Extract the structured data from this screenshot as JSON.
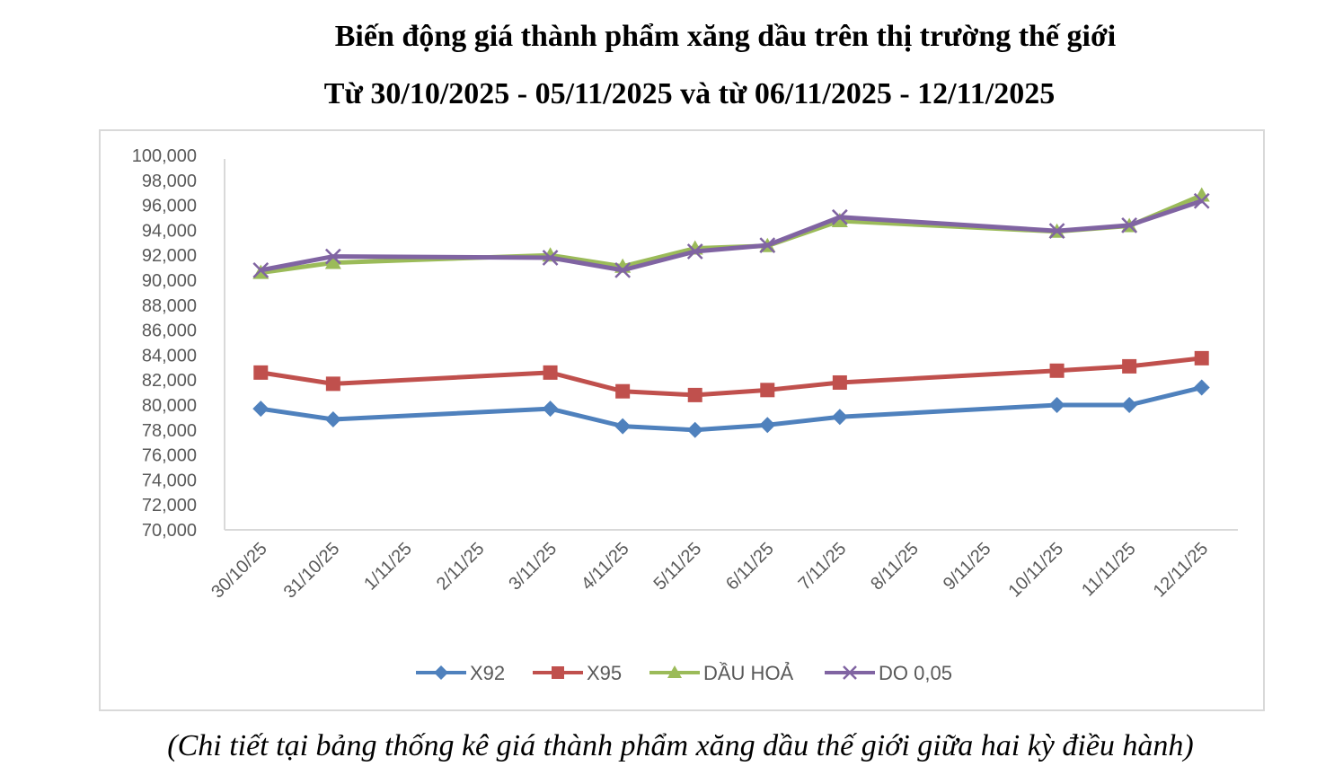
{
  "header": {
    "title_line1": "Biến động giá thành phẩm xăng dầu trên thị trường thế giới",
    "title_line2": "Từ 30/10/2025 - 05/11/2025 và từ 06/11/2025 - 12/11/2025"
  },
  "footer": {
    "caption": "(Chi tiết tại bảng thống kê giá thành phẩm xăng dầu thế giới giữa hai kỳ điều hành)"
  },
  "chart_data": {
    "type": "line",
    "title": "Biến động giá thành phẩm xăng dầu trên thị trường thế giới",
    "subtitle": "Từ 30/10/2025 - 05/11/2025 và từ 06/11/2025 - 12/11/2025",
    "xlabel": "",
    "ylabel": "",
    "ylim": [
      70000,
      100000
    ],
    "ytick_step": 2000,
    "yticks": [
      "100,000",
      "98,000",
      "96,000",
      "94,000",
      "92,000",
      "90,000",
      "88,000",
      "86,000",
      "84,000",
      "82,000",
      "80,000",
      "78,000",
      "76,000",
      "74,000",
      "72,000",
      "70,000"
    ],
    "grid": false,
    "legend_position": "bottom",
    "categories": [
      "30/10/25",
      "31/10/25",
      "1/11/25",
      "2/11/25",
      "3/11/25",
      "4/11/25",
      "5/11/25",
      "6/11/25",
      "7/11/25",
      "8/11/25",
      "9/11/25",
      "10/11/25",
      "11/11/25",
      "12/11/25"
    ],
    "series": [
      {
        "name": "X92",
        "color": "#4f81bd",
        "marker": "diamond",
        "values": [
          79700,
          78850,
          null,
          null,
          79700,
          78300,
          78000,
          78400,
          79050,
          null,
          null,
          80000,
          80000,
          81400
        ]
      },
      {
        "name": "X95",
        "color": "#c0504d",
        "marker": "square",
        "values": [
          82600,
          81700,
          null,
          null,
          82600,
          81100,
          80800,
          81200,
          81800,
          null,
          null,
          82750,
          83100,
          83750
        ]
      },
      {
        "name": "DẦU HOẢ",
        "color": "#9bbb59",
        "marker": "triangle",
        "values": [
          90600,
          91400,
          null,
          null,
          92000,
          91100,
          92550,
          92750,
          94750,
          null,
          null,
          93900,
          94350,
          96800
        ]
      },
      {
        "name": "DO 0,05",
        "color": "#8064a2",
        "marker": "x",
        "values": [
          90800,
          91900,
          null,
          null,
          91800,
          90800,
          92300,
          92800,
          95050,
          null,
          null,
          93950,
          94400,
          96350
        ]
      }
    ]
  }
}
